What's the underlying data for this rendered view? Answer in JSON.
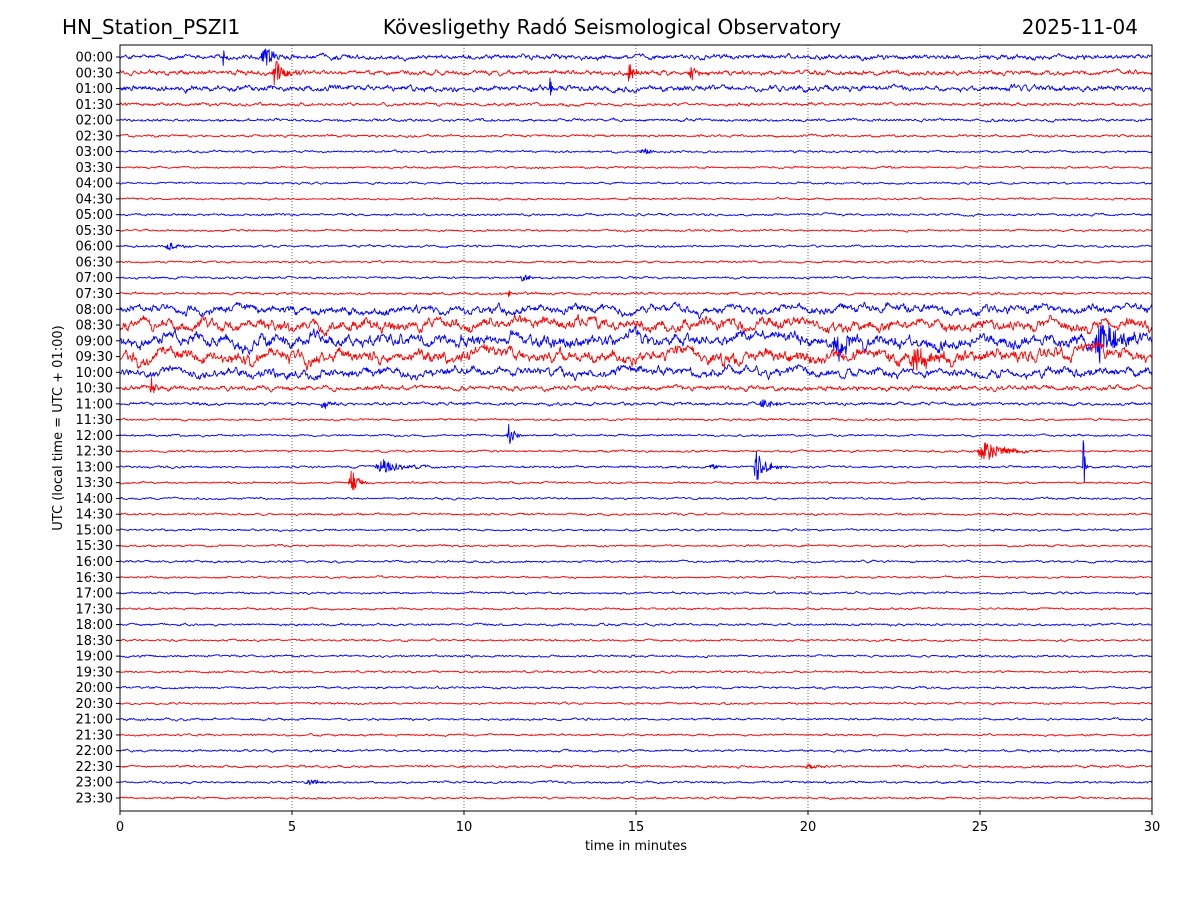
{
  "header": {
    "station": "HN_Station_PSZI1",
    "observatory": "Kövesligethy Radó Seismological Observatory",
    "date": "2025-11-04"
  },
  "chart_data": {
    "type": "line",
    "title": "Kövesligethy Radó Seismological Observatory",
    "xlabel": "time in minutes",
    "ylabel": "UTC (local time = UTC + 01:00)",
    "xlim": [
      0,
      30
    ],
    "xticks": [
      0,
      5,
      10,
      15,
      20,
      25,
      30
    ],
    "grid": "vertical dotted",
    "colors": [
      "#0000ff",
      "#ff0000"
    ],
    "traces": [
      "00:00",
      "00:30",
      "01:00",
      "01:30",
      "02:00",
      "02:30",
      "03:00",
      "03:30",
      "04:00",
      "04:30",
      "05:00",
      "05:30",
      "06:00",
      "06:30",
      "07:00",
      "07:30",
      "08:00",
      "08:30",
      "09:00",
      "09:30",
      "10:00",
      "10:30",
      "11:00",
      "11:30",
      "12:00",
      "12:30",
      "13:00",
      "13:30",
      "14:00",
      "14:30",
      "15:00",
      "15:30",
      "16:00",
      "16:30",
      "17:00",
      "17:30",
      "18:00",
      "18:30",
      "19:00",
      "19:30",
      "20:00",
      "20:30",
      "21:00",
      "21:30",
      "22:00",
      "22:30",
      "23:00",
      "23:30"
    ],
    "noise_level": [
      0.3,
      0.28,
      0.35,
      0.18,
      0.17,
      0.14,
      0.13,
      0.12,
      0.12,
      0.12,
      0.13,
      0.12,
      0.13,
      0.12,
      0.13,
      0.15,
      0.7,
      0.95,
      1.0,
      1.05,
      0.75,
      0.3,
      0.18,
      0.12,
      0.12,
      0.12,
      0.13,
      0.12,
      0.12,
      0.12,
      0.12,
      0.12,
      0.13,
      0.12,
      0.13,
      0.12,
      0.13,
      0.12,
      0.13,
      0.12,
      0.13,
      0.12,
      0.13,
      0.12,
      0.13,
      0.14,
      0.13,
      0.12
    ],
    "events": [
      {
        "trace": 0,
        "minute": 3.0,
        "amplitude": 0.7,
        "duration": 0.1
      },
      {
        "trace": 0,
        "minute": 4.2,
        "amplitude": 0.7,
        "duration": 0.6
      },
      {
        "trace": 1,
        "minute": 4.5,
        "amplitude": 1.1,
        "duration": 0.5
      },
      {
        "trace": 1,
        "minute": 14.8,
        "amplitude": 0.9,
        "duration": 0.25
      },
      {
        "trace": 1,
        "minute": 16.6,
        "amplitude": 0.6,
        "duration": 0.4
      },
      {
        "trace": 2,
        "minute": 12.5,
        "amplitude": 0.8,
        "duration": 0.1
      },
      {
        "trace": 6,
        "minute": 15.2,
        "amplitude": 0.3,
        "duration": 0.5
      },
      {
        "trace": 12,
        "minute": 1.4,
        "amplitude": 0.35,
        "duration": 0.6
      },
      {
        "trace": 14,
        "minute": 11.7,
        "amplitude": 0.3,
        "duration": 0.4
      },
      {
        "trace": 15,
        "minute": 11.3,
        "amplitude": 0.3,
        "duration": 0.1
      },
      {
        "trace": 18,
        "minute": 20.8,
        "amplitude": 0.9,
        "duration": 0.8
      },
      {
        "trace": 18,
        "minute": 28.5,
        "amplitude": 1.2,
        "duration": 1.1
      },
      {
        "trace": 19,
        "minute": 23.1,
        "amplitude": 0.7,
        "duration": 1.0
      },
      {
        "trace": 21,
        "minute": 0.9,
        "amplitude": 0.9,
        "duration": 0.2
      },
      {
        "trace": 22,
        "minute": 5.9,
        "amplitude": 0.35,
        "duration": 0.4
      },
      {
        "trace": 22,
        "minute": 18.7,
        "amplitude": 0.3,
        "duration": 0.7
      },
      {
        "trace": 24,
        "minute": 11.3,
        "amplitude": 0.8,
        "duration": 0.3
      },
      {
        "trace": 25,
        "minute": 25.1,
        "amplitude": 0.7,
        "duration": 1.1
      },
      {
        "trace": 26,
        "minute": 7.6,
        "amplitude": 0.5,
        "duration": 1.1
      },
      {
        "trace": 26,
        "minute": 17.2,
        "amplitude": 0.25,
        "duration": 0.3
      },
      {
        "trace": 26,
        "minute": 18.5,
        "amplitude": 1.0,
        "duration": 0.6
      },
      {
        "trace": 26,
        "minute": 28.0,
        "amplitude": 3.0,
        "duration": 0.08
      },
      {
        "trace": 27,
        "minute": 6.7,
        "amplitude": 1.0,
        "duration": 0.3
      },
      {
        "trace": 45,
        "minute": 20.0,
        "amplitude": 0.2,
        "duration": 0.5
      },
      {
        "trace": 46,
        "minute": 5.5,
        "amplitude": 0.35,
        "duration": 0.4
      }
    ]
  }
}
